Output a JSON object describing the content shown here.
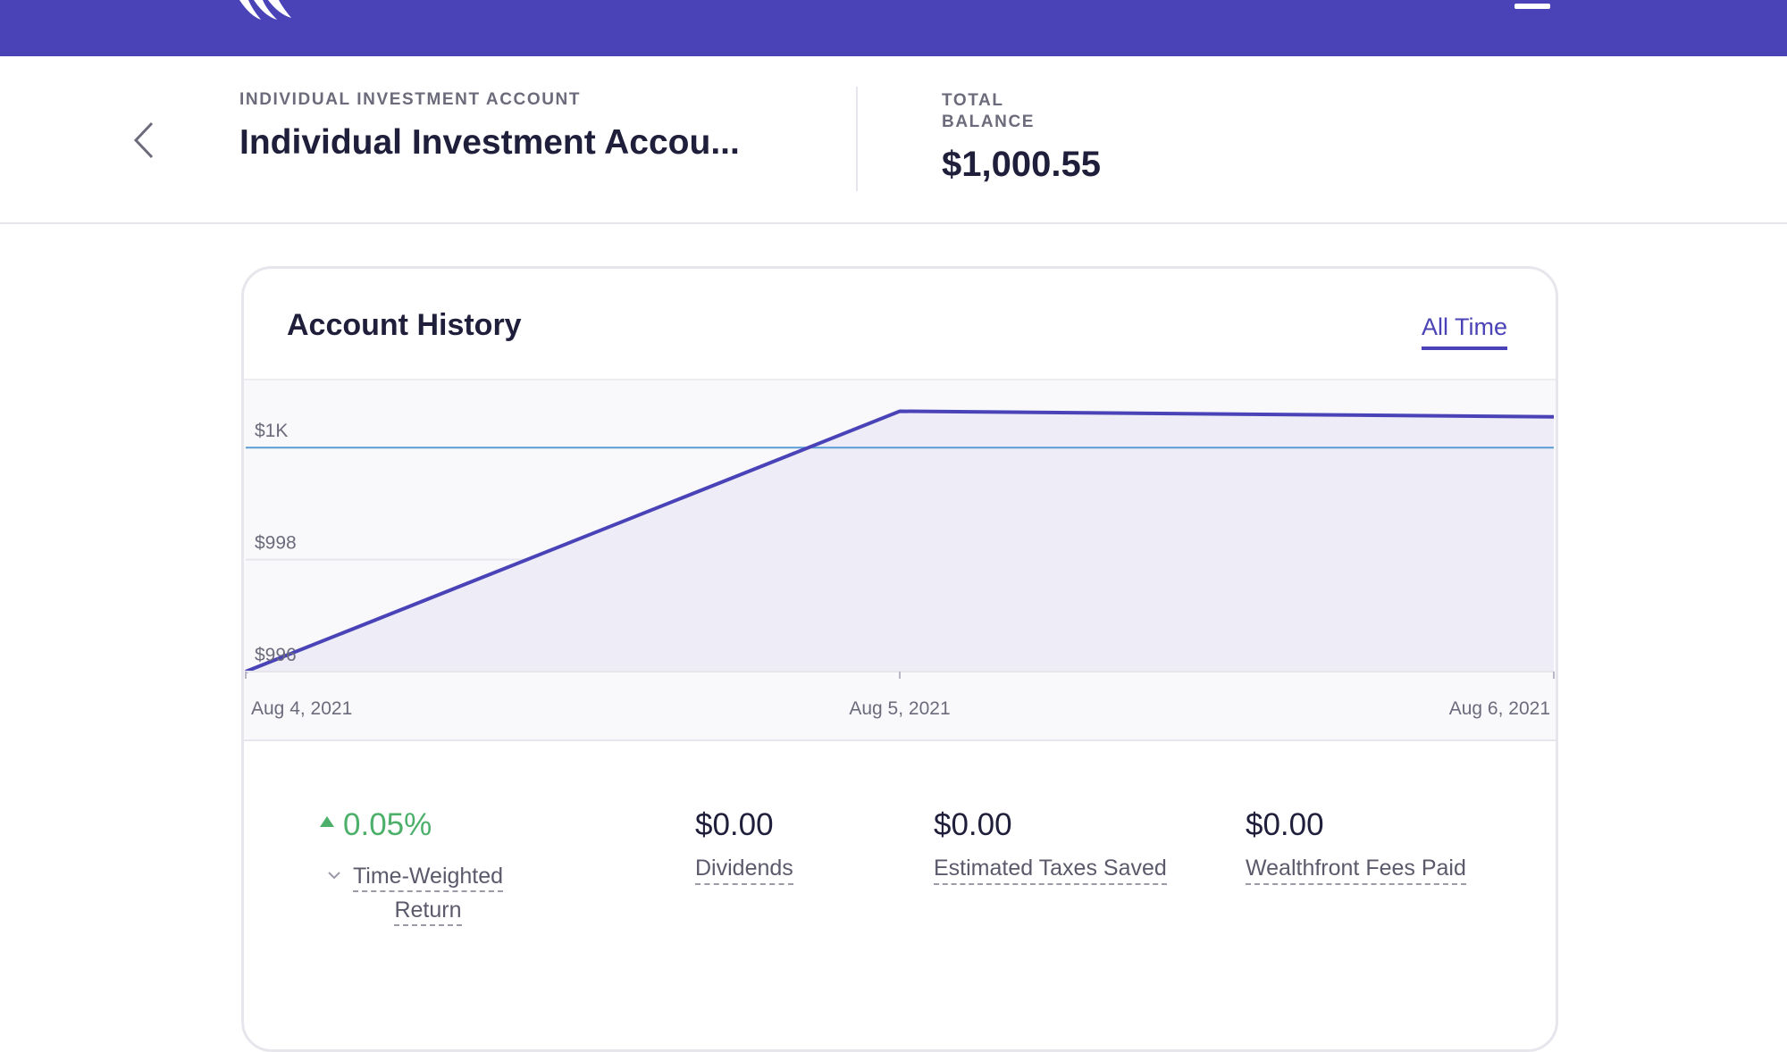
{
  "brand": {
    "color": "#4a43b8",
    "logo_icon": "wealthfront-logo",
    "menu_icon": "hamburger-menu-icon"
  },
  "header": {
    "back_icon": "chevron-left-icon",
    "account_type": "INDIVIDUAL INVESTMENT ACCOUNT",
    "account_name": "Individual Investment Accou...",
    "total_label": "TOTAL BALANCE",
    "total_value": "$1,000.55"
  },
  "card": {
    "title": "Account History",
    "range_tab": "All Time"
  },
  "chart_data": {
    "type": "area",
    "title": "Account History",
    "x": [
      "Aug 4, 2021",
      "Aug 5, 2021",
      "Aug 6, 2021"
    ],
    "x_tick_labels": [
      "Aug 4, 2021",
      "Aug 5, 2021",
      "Aug 6, 2021"
    ],
    "series": [
      {
        "values": [
          996.0,
          1000.65,
          1000.55
        ],
        "color": "#4a43b8"
      }
    ],
    "reference_line": {
      "value": 1000.0,
      "color": "#5b9bd5"
    },
    "y_tick_labels": [
      "$1K",
      "$998",
      "$996"
    ],
    "y_ticks": [
      1000,
      998,
      996
    ],
    "ylim": [
      996,
      1001.2
    ],
    "grid": true
  },
  "stats": {
    "twr_value": "0.05%",
    "twr_label": "Time-Weighted Return",
    "twr_color": "#4caf6a",
    "dividends_value": "$0.00",
    "dividends_label": "Dividends",
    "taxes_value": "$0.00",
    "taxes_label": "Estimated Taxes Saved",
    "fees_value": "$0.00",
    "fees_label": "Wealthfront Fees Paid"
  }
}
